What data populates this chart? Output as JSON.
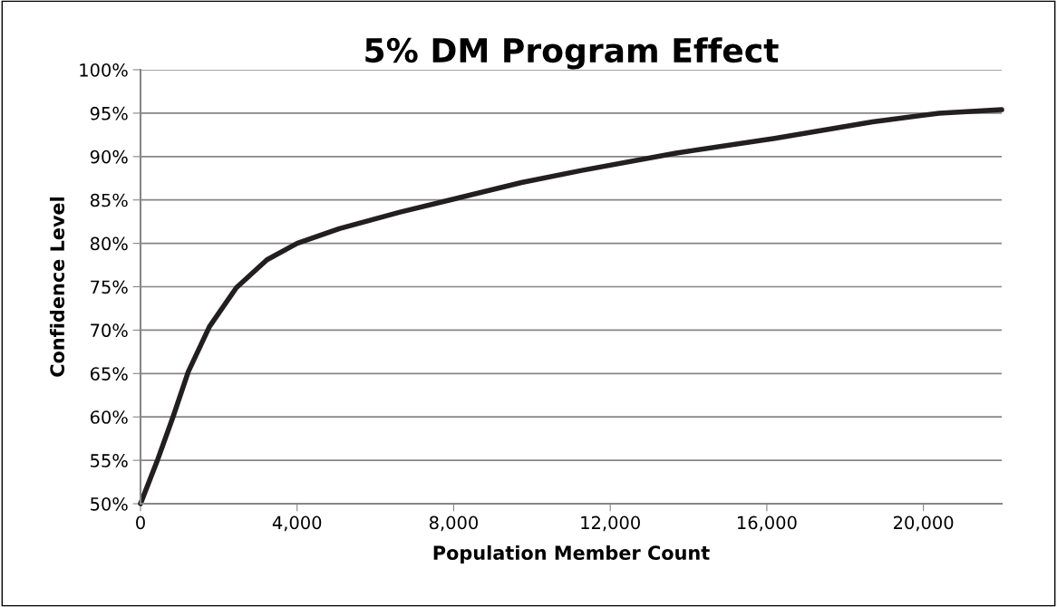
{
  "chart_data": {
    "type": "line",
    "title": "5% DM Program Effect",
    "xlabel": "Population Member Count",
    "ylabel": "Confidence Level",
    "x": [
      0,
      440,
      830,
      1220,
      1760,
      2450,
      3230,
      4000,
      5080,
      6630,
      8000,
      9730,
      11270,
      13680,
      16200,
      18700,
      20400,
      22000
    ],
    "series": [
      {
        "color": "#231f20",
        "values": [
          50,
          55.1,
          60,
          65.2,
          70.4,
          74.9,
          78.1,
          80,
          81.7,
          83.6,
          85.1,
          87,
          88.4,
          90.4,
          92.1,
          94,
          95,
          95.4
        ]
      }
    ],
    "xlim": [
      0,
      22000
    ],
    "xticks": [
      {
        "value": 0,
        "label": "0"
      },
      {
        "value": 4000,
        "label": "4,000"
      },
      {
        "value": 8000,
        "label": "8,000"
      },
      {
        "value": 12000,
        "label": "12,000"
      },
      {
        "value": 16000,
        "label": "16,000"
      },
      {
        "value": 20000,
        "label": "20,000"
      }
    ],
    "ylim": [
      50,
      100
    ],
    "yticks": [
      {
        "value": 50,
        "label": "50%"
      },
      {
        "value": 55,
        "label": "55%"
      },
      {
        "value": 60,
        "label": "60%"
      },
      {
        "value": 65,
        "label": "65%"
      },
      {
        "value": 70,
        "label": "70%"
      },
      {
        "value": 75,
        "label": "75%"
      },
      {
        "value": 80,
        "label": "80%"
      },
      {
        "value": 85,
        "label": "85%"
      },
      {
        "value": 90,
        "label": "90%"
      },
      {
        "value": 95,
        "label": "95%"
      },
      {
        "value": 100,
        "label": "100%"
      }
    ],
    "grid": "y",
    "marker": "none",
    "line_style": "solid"
  }
}
